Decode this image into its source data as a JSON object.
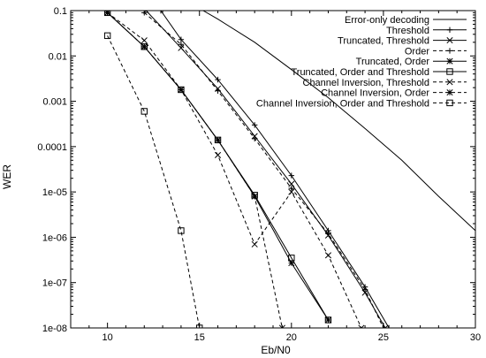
{
  "chart_data": {
    "type": "line",
    "title": "",
    "xlabel": "Eb/N0",
    "ylabel": "WER",
    "xlim": [
      8,
      30
    ],
    "ylim": [
      1e-08,
      0.1
    ],
    "yscale": "log",
    "grid": false,
    "legend_position": "top-right",
    "x_ticks": [
      {
        "value": 10,
        "label": "10"
      },
      {
        "value": 15,
        "label": "15"
      },
      {
        "value": 20,
        "label": "20"
      },
      {
        "value": 25,
        "label": "25"
      },
      {
        "value": 30,
        "label": "30"
      }
    ],
    "y_ticks": [
      {
        "value": 0.1,
        "label": "0.1"
      },
      {
        "value": 0.01,
        "label": "0.01"
      },
      {
        "value": 0.001,
        "label": "0.001"
      },
      {
        "value": 0.0001,
        "label": "0.0001"
      },
      {
        "value": 1e-05,
        "label": "1e-05"
      },
      {
        "value": 1e-06,
        "label": "1e-06"
      },
      {
        "value": 1e-07,
        "label": "1e-07"
      },
      {
        "value": 1e-08,
        "label": "1e-08"
      }
    ],
    "series": [
      {
        "name": "Error-only decoding",
        "line": "solid",
        "marker": "none",
        "x": [
          15.2,
          16,
          18,
          20,
          22,
          24,
          26,
          28,
          30
        ],
        "y": [
          0.1,
          0.065,
          0.02,
          0.005,
          0.0012,
          0.00025,
          5e-05,
          8e-06,
          1.4e-06
        ]
      },
      {
        "name": "Threshold",
        "line": "solid",
        "marker": "plus",
        "x": [
          12.9,
          14,
          16,
          18,
          20,
          22,
          24,
          25.3
        ],
        "y": [
          0.1,
          0.023,
          0.003,
          0.0003,
          2.3e-05,
          1.4e-06,
          8e-08,
          1e-08
        ]
      },
      {
        "name": "Truncated, Threshold",
        "line": "solid",
        "marker": "x",
        "x": [
          12.1,
          14,
          16,
          18,
          20,
          22,
          24,
          25.1
        ],
        "y": [
          0.1,
          0.015,
          0.0019,
          0.00017,
          1.5e-05,
          1.1e-06,
          6e-08,
          1e-08
        ]
      },
      {
        "name": "Order",
        "line": "dashed",
        "marker": "plus",
        "x": [
          12,
          14,
          16,
          18,
          20,
          22,
          24,
          25
        ],
        "y": [
          0.09,
          0.018,
          0.0017,
          0.00015,
          1.2e-05,
          1.2e-06,
          7e-08,
          1e-08
        ]
      },
      {
        "name": "Truncated, Order",
        "line": "solid",
        "marker": "star",
        "x": [
          10,
          12,
          14,
          16,
          18,
          20,
          22
        ],
        "y": [
          0.09,
          0.016,
          0.0018,
          0.00014,
          8e-06,
          2.7e-07,
          1.5e-08
        ]
      },
      {
        "name": "Truncated, Order and Threshold",
        "line": "solid",
        "marker": "square",
        "x": [
          10,
          12,
          14,
          16,
          18,
          20,
          22
        ],
        "y": [
          0.09,
          0.016,
          0.0018,
          0.00014,
          8.5e-06,
          3.5e-07,
          1.5e-08
        ]
      },
      {
        "name": "Channel Inversion, Threshold",
        "line": "dashed",
        "marker": "x",
        "x": [
          10,
          12,
          14,
          16,
          18,
          20,
          22,
          23.8
        ],
        "y": [
          0.09,
          0.022,
          0.0018,
          6.5e-05,
          7e-07,
          1e-05,
          4e-07,
          1e-08
        ]
      },
      {
        "name": "Channel Inversion, Order",
        "line": "dashed",
        "marker": "star",
        "x": [
          10,
          12,
          14,
          16,
          18,
          19.5
        ],
        "y": [
          0.09,
          0.016,
          0.0018,
          0.00014,
          8e-06,
          1e-08
        ]
      },
      {
        "name": "Channel Inversion, Order and Threshold",
        "line": "dashed",
        "marker": "square",
        "x": [
          10,
          12,
          14,
          15
        ],
        "y": [
          0.028,
          0.0006,
          1.4e-06,
          1e-08
        ]
      }
    ]
  }
}
